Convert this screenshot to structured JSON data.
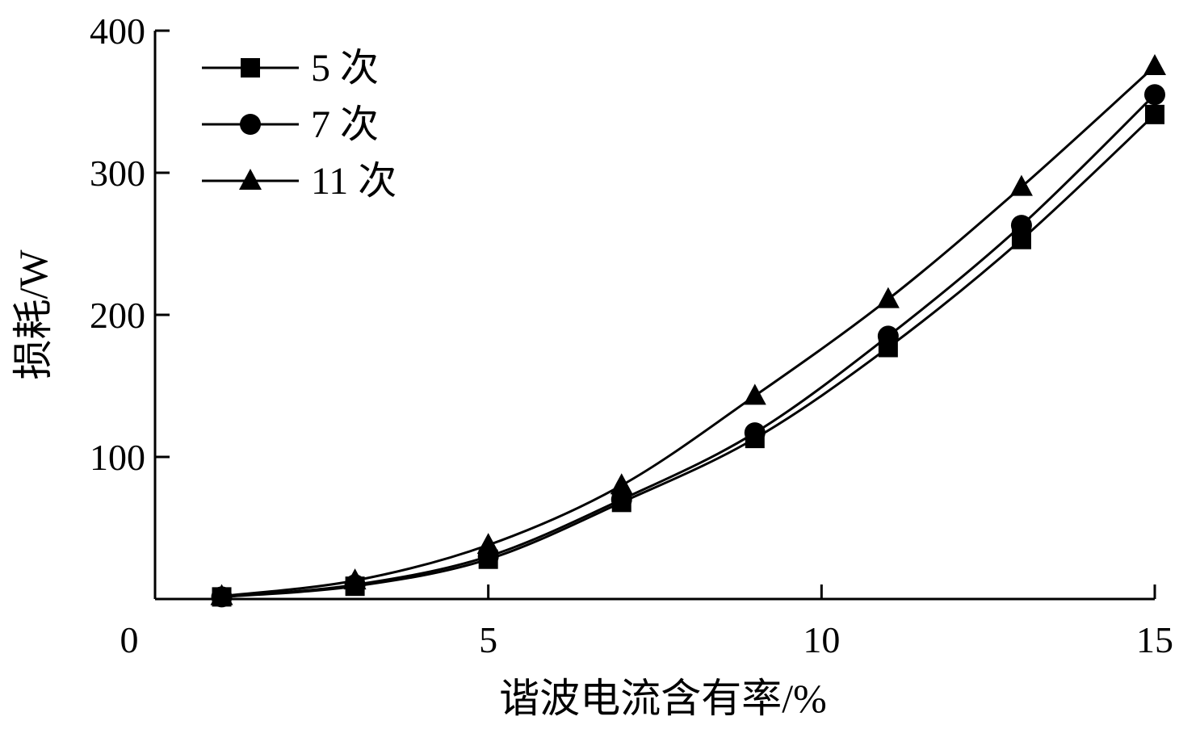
{
  "chart_data": {
    "type": "line",
    "xlabel": "谐波电流含有率/%",
    "ylabel": "损耗/W",
    "xlim": [
      0,
      15
    ],
    "ylim": [
      0,
      400
    ],
    "x_ticks": [
      "0",
      "5",
      "10",
      "15"
    ],
    "y_ticks": [
      "100",
      "200",
      "300",
      "400"
    ],
    "x_tick_values": [
      0,
      5,
      10,
      15
    ],
    "y_tick_values": [
      100,
      200,
      300,
      400
    ],
    "grid": false,
    "legend_position": "top-left",
    "x": [
      1,
      3,
      5,
      7,
      9,
      11,
      13,
      15
    ],
    "series": [
      {
        "name": "5 次",
        "marker": "square",
        "values": [
          1.5,
          9,
          28,
          68,
          113,
          177,
          253,
          341
        ]
      },
      {
        "name": "7 次",
        "marker": "circle",
        "values": [
          1.5,
          10,
          30,
          70,
          117,
          185,
          263,
          355
        ]
      },
      {
        "name": "11 次",
        "marker": "triangle",
        "values": [
          2,
          13,
          38,
          80,
          143,
          211,
          290,
          375
        ]
      }
    ]
  }
}
